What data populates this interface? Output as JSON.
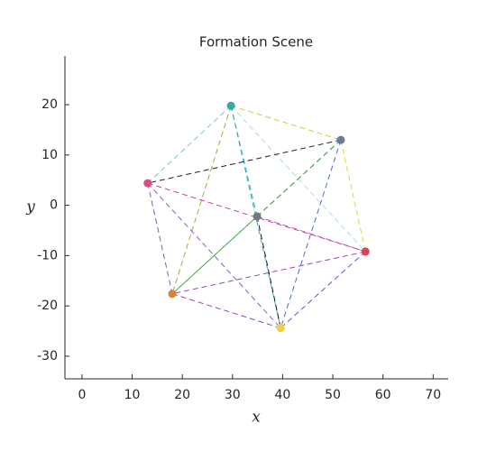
{
  "chart_data": {
    "type": "scatter",
    "title": "Formation Scene",
    "x_label": "x",
    "y_label": "y",
    "x": [
      29.7,
      51.6,
      13.1,
      34.9,
      56.5,
      18.0,
      39.6
    ],
    "values": [
      19.8,
      13.0,
      4.4,
      -2.2,
      -9.2,
      -17.6,
      -24.4
    ],
    "colors": [
      "#3aa8a8",
      "#6b7a9a",
      "#d4508a",
      "#6e7a80",
      "#d9435a",
      "#d9843a",
      "#f0d040"
    ],
    "xlim": [
      -3.4,
      73
    ],
    "xticks": [
      0,
      10,
      20,
      30,
      40,
      50,
      60,
      70
    ],
    "ylim": [
      -34.5,
      29.7
    ],
    "yticks": [
      -30,
      -20,
      -10,
      0,
      10,
      20
    ],
    "grid": false
  }
}
